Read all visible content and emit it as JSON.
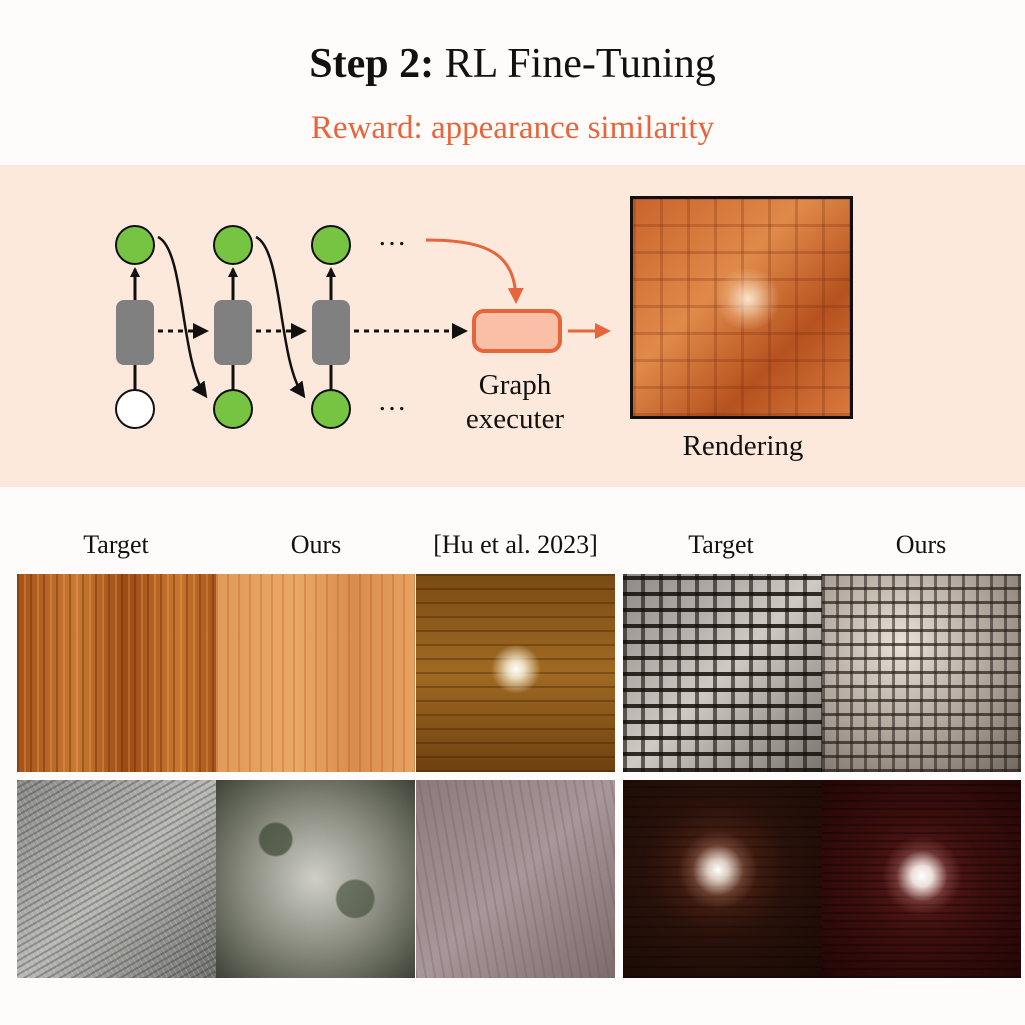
{
  "header": {
    "title_bold": "Step 2:",
    "title_rest": "RL Fine-Tuning",
    "subtitle": "Reward: appearance similarity"
  },
  "diagram": {
    "ellipsis_top": "…",
    "ellipsis_bottom": "…",
    "executer_label_line1": "Graph",
    "executer_label_line2": "executer",
    "rendering_label": "Rendering"
  },
  "comparison": {
    "columns": [
      "Target",
      "Ours",
      "[Hu et al. 2023]",
      "Target",
      "Ours"
    ]
  },
  "colors": {
    "accent": "#e8643a",
    "band": "#fde8dc",
    "node_green": "#76c442",
    "block_gray": "#808080",
    "executer_fill": "#f9c0a7"
  }
}
